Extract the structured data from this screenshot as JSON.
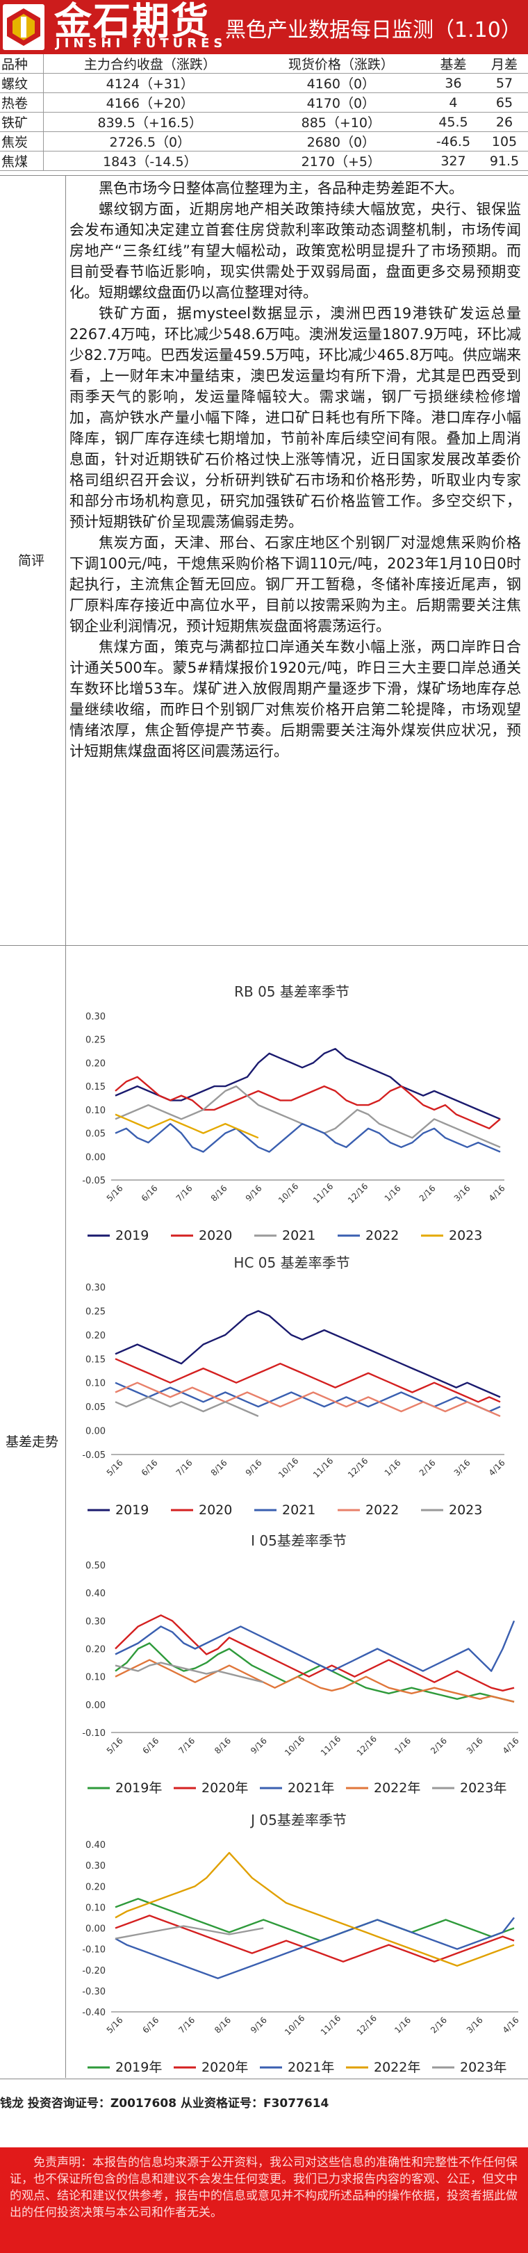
{
  "header": {
    "logo_cn": "金石期货",
    "logo_en": "JINSHI FUTURES",
    "title": "黑色产业数据每日监测（1.10）"
  },
  "table": {
    "headers": [
      "品种",
      "主力合约收盘（涨跌）",
      "现货价格（涨跌）",
      "基差",
      "月差"
    ],
    "rows": [
      [
        "螺纹",
        "4124（+31）",
        "4160（0）",
        "36",
        "57"
      ],
      [
        "热卷",
        "4166（+20）",
        "4170（0）",
        "4",
        "65"
      ],
      [
        "铁矿",
        "839.5（+16.5）",
        "885（+10）",
        "45.5",
        "26"
      ],
      [
        "焦炭",
        "2726.5（0）",
        "2680（0）",
        "-46.5",
        "105"
      ],
      [
        "焦煤",
        "1843（-14.5）",
        "2170（+5）",
        "327",
        "91.5"
      ]
    ]
  },
  "review": {
    "label": "简评",
    "paragraphs": [
      "黑色市场今日整体高位整理为主，各品种走势差距不大。",
      "螺纹钢方面，近期房地产相关政策持续大幅放宽，央行、银保监会发布通知决定建立首套住房贷款利率政策动态调整机制，市场传闻房地产“三条红线”有望大幅松动，政策宽松明显提升了市场预期。而目前受春节临近影响，现实供需处于双弱局面，盘面更多交易预期变化。短期螺纹盘面仍以高位整理对待。",
      "铁矿方面，据mysteel数据显示，澳洲巴西19港铁矿发运总量2267.4万吨，环比减少548.6万吨。澳洲发运量1807.9万吨，环比减少82.7万吨。巴西发运量459.5万吨，环比减少465.8万吨。供应端来看，上一财年末冲量结束，澳巴发运量均有所下滑，尤其是巴西受到雨季天气的影响，发运量降幅较大。需求端，钢厂亏损继续检修增加，高炉铁水产量小幅下降，进口矿日耗也有所下降。港口库存小幅降库，钢厂库存连续七期增加，节前补库后续空间有限。叠加上周消息面，针对近期铁矿石价格过快上涨等情况，近日国家发展改革委价格司组织召开会议，分析研判铁矿石市场和价格形势，听取业内专家和部分市场机构意见，研究加强铁矿石价格监管工作。多空交织下，预计短期铁矿价呈现震荡偏弱走势。",
      "焦炭方面，天津、邢台、石家庄地区个别钢厂对湿熄焦采购价格下调100元/吨，干熄焦采购价格下调110元/吨，2023年1月10日0时起执行，主流焦企暂无回应。钢厂开工暂稳，冬储补库接近尾声，钢厂原料库存接近中高位水平，目前以按需采购为主。后期需要关注焦钢企业利润情况，预计短期焦炭盘面将震荡运行。",
      "焦煤方面，策克与满都拉口岸通关车数小幅上涨，两口岸昨日合计通关500车。蒙5#精煤报价1920元/吨，昨日三大主要口岸总通关车数环比增53车。煤矿进入放假周期产量逐步下滑，煤矿场地库存总量继续收缩，而昨日个别钢厂对焦炭价格开启第二轮提降，市场观望情绪浓厚，焦企暂停提产节奏。后期需要关注海外煤炭供应状况，预计短期焦煤盘面将区间震荡运行。"
    ]
  },
  "basis_label": "基差走势",
  "chart_data": [
    {
      "type": "line",
      "title": "RB 05 基差率季节",
      "ylim": [
        -0.05,
        0.3
      ],
      "yticks": [
        "0.30",
        "0.25",
        "0.20",
        "0.15",
        "0.10",
        "0.05",
        "0.00",
        "-0.05"
      ],
      "xticks": [
        "5/16",
        "6/16",
        "7/16",
        "8/16",
        "9/16",
        "10/16",
        "11/16",
        "12/16",
        "1/16",
        "2/16",
        "3/16",
        "4/16"
      ],
      "series": [
        {
          "name": "2019",
          "color": "#1a1a6e",
          "values": [
            0.13,
            0.14,
            0.15,
            0.14,
            0.13,
            0.12,
            0.12,
            0.13,
            0.14,
            0.15,
            0.15,
            0.16,
            0.17,
            0.2,
            0.22,
            0.21,
            0.2,
            0.19,
            0.2,
            0.22,
            0.23,
            0.21,
            0.2,
            0.19,
            0.18,
            0.17,
            0.15,
            0.14,
            0.13,
            0.14,
            0.13,
            0.12,
            0.11,
            0.1,
            0.09,
            0.08
          ]
        },
        {
          "name": "2020",
          "color": "#d42020",
          "values": [
            0.14,
            0.16,
            0.17,
            0.15,
            0.13,
            0.12,
            0.13,
            0.12,
            0.1,
            0.1,
            0.11,
            0.12,
            0.13,
            0.14,
            0.13,
            0.12,
            0.12,
            0.13,
            0.14,
            0.15,
            0.14,
            0.12,
            0.11,
            0.11,
            0.12,
            0.14,
            0.15,
            0.13,
            0.11,
            0.1,
            0.11,
            0.09,
            0.08,
            0.07,
            0.06,
            0.08
          ]
        },
        {
          "name": "2021",
          "color": "#9a9a9a",
          "values": [
            0.08,
            0.09,
            0.1,
            0.11,
            0.1,
            0.09,
            0.08,
            0.09,
            0.1,
            0.12,
            0.14,
            0.15,
            0.13,
            0.11,
            0.1,
            0.09,
            0.08,
            0.07,
            0.06,
            0.05,
            0.06,
            0.08,
            0.1,
            0.09,
            0.07,
            0.06,
            0.05,
            0.04,
            0.06,
            0.08,
            0.07,
            0.06,
            0.05,
            0.04,
            0.03,
            0.02
          ]
        },
        {
          "name": "2022",
          "color": "#3a5fb0",
          "values": [
            0.05,
            0.06,
            0.04,
            0.03,
            0.05,
            0.07,
            0.05,
            0.02,
            0.01,
            0.03,
            0.05,
            0.06,
            0.04,
            0.02,
            0.01,
            0.03,
            0.05,
            0.07,
            0.06,
            0.05,
            0.03,
            0.02,
            0.04,
            0.06,
            0.05,
            0.03,
            0.02,
            0.03,
            0.05,
            0.06,
            0.04,
            0.03,
            0.02,
            0.03,
            0.02,
            0.01
          ]
        },
        {
          "name": "2023",
          "color": "#e4a900",
          "values": [
            0.09,
            0.08,
            0.07,
            0.06,
            0.07,
            0.08,
            0.07,
            0.06,
            0.05,
            0.06,
            0.07,
            0.06,
            0.05,
            0.04
          ]
        }
      ]
    },
    {
      "type": "line",
      "title": "HC 05 基差率季节",
      "ylim": [
        -0.05,
        0.3
      ],
      "yticks": [
        "0.30",
        "0.25",
        "0.20",
        "0.15",
        "0.10",
        "0.05",
        "0.00",
        "-0.05"
      ],
      "xticks": [
        "5/16",
        "6/16",
        "7/16",
        "8/16",
        "9/16",
        "10/16",
        "11/16",
        "12/16",
        "1/16",
        "2/16",
        "3/16",
        "4/16"
      ],
      "series": [
        {
          "name": "2019",
          "color": "#1a1a6e",
          "values": [
            0.16,
            0.17,
            0.18,
            0.17,
            0.16,
            0.15,
            0.14,
            0.16,
            0.18,
            0.19,
            0.2,
            0.22,
            0.24,
            0.25,
            0.24,
            0.22,
            0.2,
            0.19,
            0.2,
            0.21,
            0.2,
            0.19,
            0.18,
            0.17,
            0.16,
            0.15,
            0.14,
            0.13,
            0.12,
            0.11,
            0.1,
            0.09,
            0.1,
            0.09,
            0.08,
            0.07
          ]
        },
        {
          "name": "2020",
          "color": "#d42020",
          "values": [
            0.15,
            0.14,
            0.13,
            0.12,
            0.11,
            0.1,
            0.11,
            0.12,
            0.13,
            0.12,
            0.11,
            0.1,
            0.11,
            0.12,
            0.13,
            0.14,
            0.13,
            0.12,
            0.11,
            0.1,
            0.09,
            0.1,
            0.11,
            0.12,
            0.11,
            0.1,
            0.09,
            0.08,
            0.09,
            0.1,
            0.09,
            0.08,
            0.07,
            0.06,
            0.07,
            0.06
          ]
        },
        {
          "name": "2021",
          "color": "#3a5fb0",
          "values": [
            0.1,
            0.09,
            0.08,
            0.07,
            0.08,
            0.09,
            0.08,
            0.07,
            0.06,
            0.07,
            0.08,
            0.07,
            0.06,
            0.05,
            0.06,
            0.07,
            0.08,
            0.07,
            0.06,
            0.05,
            0.06,
            0.07,
            0.06,
            0.05,
            0.06,
            0.07,
            0.08,
            0.07,
            0.06,
            0.05,
            0.06,
            0.07,
            0.06,
            0.05,
            0.04,
            0.05
          ]
        },
        {
          "name": "2022",
          "color": "#e8806a",
          "values": [
            0.08,
            0.09,
            0.1,
            0.09,
            0.08,
            0.07,
            0.08,
            0.09,
            0.08,
            0.07,
            0.06,
            0.07,
            0.08,
            0.07,
            0.06,
            0.05,
            0.06,
            0.07,
            0.08,
            0.07,
            0.06,
            0.05,
            0.06,
            0.07,
            0.06,
            0.05,
            0.04,
            0.05,
            0.06,
            0.05,
            0.04,
            0.05,
            0.06,
            0.05,
            0.04,
            0.03
          ]
        },
        {
          "name": "2023",
          "color": "#999999",
          "values": [
            0.06,
            0.05,
            0.06,
            0.07,
            0.06,
            0.05,
            0.06,
            0.05,
            0.04,
            0.05,
            0.06,
            0.05,
            0.04,
            0.03
          ]
        }
      ]
    },
    {
      "type": "line",
      "title": "I 05基差率季节",
      "ylim": [
        -0.1,
        0.5
      ],
      "yticks": [
        "0.50",
        "0.40",
        "0.30",
        "0.20",
        "0.10",
        "0.00",
        "-0.10"
      ],
      "xticks": [
        "5/16",
        "6/16",
        "7/16",
        "8/16",
        "9/16",
        "10/16",
        "11/16",
        "12/16",
        "1/16",
        "2/16",
        "3/16",
        "4/16"
      ],
      "series": [
        {
          "name": "2019年",
          "color": "#2e9a3a",
          "values": [
            0.12,
            0.15,
            0.2,
            0.22,
            0.18,
            0.14,
            0.12,
            0.13,
            0.15,
            0.18,
            0.2,
            0.17,
            0.14,
            0.12,
            0.1,
            0.08,
            0.1,
            0.12,
            0.14,
            0.12,
            0.1,
            0.08,
            0.06,
            0.05,
            0.04,
            0.05,
            0.06,
            0.05,
            0.04,
            0.03,
            0.02,
            0.03,
            0.04,
            0.03,
            0.02,
            0.01
          ]
        },
        {
          "name": "2020年",
          "color": "#d42020",
          "values": [
            0.2,
            0.24,
            0.28,
            0.3,
            0.32,
            0.3,
            0.26,
            0.22,
            0.18,
            0.2,
            0.24,
            0.22,
            0.2,
            0.18,
            0.16,
            0.14,
            0.12,
            0.1,
            0.12,
            0.14,
            0.12,
            0.1,
            0.12,
            0.14,
            0.16,
            0.14,
            0.12,
            0.1,
            0.08,
            0.1,
            0.12,
            0.1,
            0.08,
            0.06,
            0.05,
            0.06
          ]
        },
        {
          "name": "2021年",
          "color": "#3a5fb0",
          "values": [
            0.18,
            0.2,
            0.22,
            0.25,
            0.28,
            0.26,
            0.22,
            0.2,
            0.22,
            0.24,
            0.26,
            0.28,
            0.26,
            0.24,
            0.22,
            0.2,
            0.18,
            0.16,
            0.14,
            0.12,
            0.14,
            0.16,
            0.18,
            0.2,
            0.18,
            0.16,
            0.14,
            0.12,
            0.14,
            0.16,
            0.18,
            0.2,
            0.16,
            0.12,
            0.2,
            0.3
          ]
        },
        {
          "name": "2022年",
          "color": "#e0763a",
          "values": [
            0.1,
            0.12,
            0.14,
            0.16,
            0.14,
            0.12,
            0.1,
            0.08,
            0.1,
            0.12,
            0.14,
            0.12,
            0.1,
            0.08,
            0.06,
            0.08,
            0.1,
            0.08,
            0.06,
            0.05,
            0.06,
            0.08,
            0.1,
            0.08,
            0.06,
            0.05,
            0.04,
            0.05,
            0.06,
            0.05,
            0.04,
            0.03,
            0.02,
            0.03,
            0.02,
            0.01
          ]
        },
        {
          "name": "2023年",
          "color": "#999999",
          "values": [
            0.14,
            0.13,
            0.12,
            0.14,
            0.15,
            0.14,
            0.13,
            0.12,
            0.11,
            0.12,
            0.11,
            0.1,
            0.09,
            0.08
          ]
        }
      ]
    },
    {
      "type": "line",
      "title": "J 05基差率季节",
      "ylim": [
        -0.4,
        0.4
      ],
      "yticks": [
        "0.40",
        "0.30",
        "0.20",
        "0.10",
        "0.00",
        "-0.10",
        "-0.20",
        "-0.30",
        "-0.40"
      ],
      "xticks": [
        "5/16",
        "6/16",
        "7/16",
        "8/16",
        "9/16",
        "10/16",
        "11/16",
        "12/16",
        "1/16",
        "2/16",
        "3/16",
        "4/16"
      ],
      "series": [
        {
          "name": "2019年",
          "color": "#2e9a3a",
          "values": [
            0.1,
            0.12,
            0.14,
            0.12,
            0.1,
            0.08,
            0.06,
            0.04,
            0.02,
            0.0,
            -0.02,
            0.0,
            0.02,
            0.04,
            0.02,
            0.0,
            -0.02,
            -0.04,
            -0.06,
            -0.04,
            -0.02,
            0.0,
            0.02,
            0.04,
            0.02,
            0.0,
            -0.02,
            0.0,
            0.02,
            0.04,
            0.02,
            0.0,
            -0.02,
            -0.04,
            -0.02,
            0.0
          ]
        },
        {
          "name": "2020年",
          "color": "#d42020",
          "values": [
            0.0,
            0.02,
            0.04,
            0.06,
            0.04,
            0.02,
            0.0,
            -0.02,
            -0.04,
            -0.06,
            -0.08,
            -0.1,
            -0.12,
            -0.1,
            -0.08,
            -0.06,
            -0.08,
            -0.1,
            -0.12,
            -0.14,
            -0.16,
            -0.14,
            -0.12,
            -0.1,
            -0.08,
            -0.1,
            -0.12,
            -0.14,
            -0.16,
            -0.14,
            -0.12,
            -0.1,
            -0.08,
            -0.06,
            -0.04,
            -0.06
          ]
        },
        {
          "name": "2021年",
          "color": "#3a5fb0",
          "values": [
            -0.05,
            -0.08,
            -0.1,
            -0.12,
            -0.14,
            -0.16,
            -0.18,
            -0.2,
            -0.22,
            -0.24,
            -0.22,
            -0.2,
            -0.18,
            -0.16,
            -0.14,
            -0.12,
            -0.1,
            -0.08,
            -0.06,
            -0.04,
            -0.02,
            0.0,
            0.02,
            0.04,
            0.02,
            0.0,
            -0.02,
            -0.04,
            -0.06,
            -0.08,
            -0.1,
            -0.08,
            -0.06,
            -0.04,
            -0.02,
            0.05
          ]
        },
        {
          "name": "2022年",
          "color": "#e0a000",
          "values": [
            0.05,
            0.08,
            0.1,
            0.12,
            0.14,
            0.16,
            0.18,
            0.2,
            0.24,
            0.3,
            0.36,
            0.3,
            0.24,
            0.2,
            0.16,
            0.12,
            0.1,
            0.08,
            0.06,
            0.04,
            0.02,
            0.0,
            -0.02,
            -0.04,
            -0.06,
            -0.08,
            -0.1,
            -0.12,
            -0.14,
            -0.16,
            -0.18,
            -0.16,
            -0.14,
            -0.12,
            -0.1,
            -0.08
          ]
        },
        {
          "name": "2023年",
          "color": "#999999",
          "values": [
            -0.05,
            -0.04,
            -0.03,
            -0.02,
            -0.01,
            0.0,
            0.01,
            0.0,
            -0.01,
            -0.02,
            -0.03,
            -0.02,
            -0.01,
            0.0
          ]
        }
      ]
    }
  ],
  "footer": {
    "analyst": "钱龙 投资咨询证号：Z0017608 从业资格证号：F3077614",
    "disclaimer": "免责声明：本报告的信息均来源于公开资料，我公司对这些信息的准确性和完整性不作任何保证，也不保证所包含的信息和建议不会发生任何变更。我们已力求报告内容的客观、公正，但文中的观点、结论和建议仅供参考，报告中的信息或意见并不构成所述品种的操作依据，投资者据此做出的任何投资决策与本公司和作者无关。"
  }
}
